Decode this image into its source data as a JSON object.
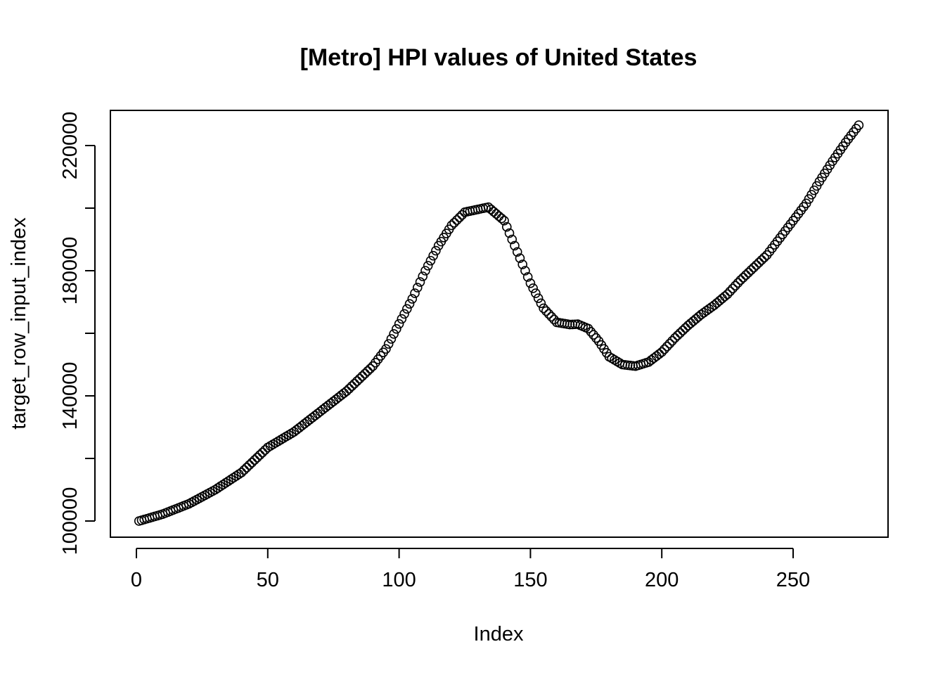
{
  "chart_data": {
    "type": "scatter",
    "title": "[Metro] HPI values of United States",
    "xlabel": "Index",
    "ylabel": "target_row_input_index",
    "xlim": [
      0,
      275
    ],
    "ylim": [
      100000,
      226500
    ],
    "xticks": [
      0,
      50,
      100,
      150,
      200,
      250
    ],
    "yticks": [
      100000,
      120000,
      140000,
      160000,
      180000,
      200000,
      220000
    ],
    "ytick_labels": [
      {
        "value": 100000,
        "label": "100000"
      },
      {
        "value": 140000,
        "label": "140000"
      },
      {
        "value": 180000,
        "label": "180000"
      },
      {
        "value": 220000,
        "label": "220000"
      }
    ],
    "grid": false,
    "legend": "none",
    "marker": "open-circle",
    "series": [
      {
        "x": [
          1,
          10,
          20,
          30,
          40,
          50,
          60,
          70,
          80,
          90,
          95,
          100,
          105,
          110,
          115,
          120,
          125,
          130,
          134,
          140,
          145,
          150,
          155,
          160,
          165,
          168,
          172,
          176,
          180,
          185,
          190,
          195,
          200,
          205,
          210,
          215,
          220,
          225,
          230,
          235,
          240,
          245,
          250,
          255,
          260,
          265,
          270,
          275
        ],
        "y": [
          100000,
          102200,
          105500,
          110000,
          115500,
          123500,
          128500,
          135000,
          141500,
          149500,
          155000,
          163000,
          171000,
          180000,
          188000,
          194500,
          198700,
          199600,
          200300,
          196000,
          186000,
          176000,
          168000,
          163500,
          162800,
          162900,
          161500,
          157500,
          152500,
          150000,
          149500,
          150800,
          154000,
          158500,
          162500,
          166000,
          169000,
          172500,
          177000,
          181000,
          185000,
          190500,
          196000,
          201500,
          208500,
          215000,
          221000,
          226500
        ]
      }
    ]
  }
}
